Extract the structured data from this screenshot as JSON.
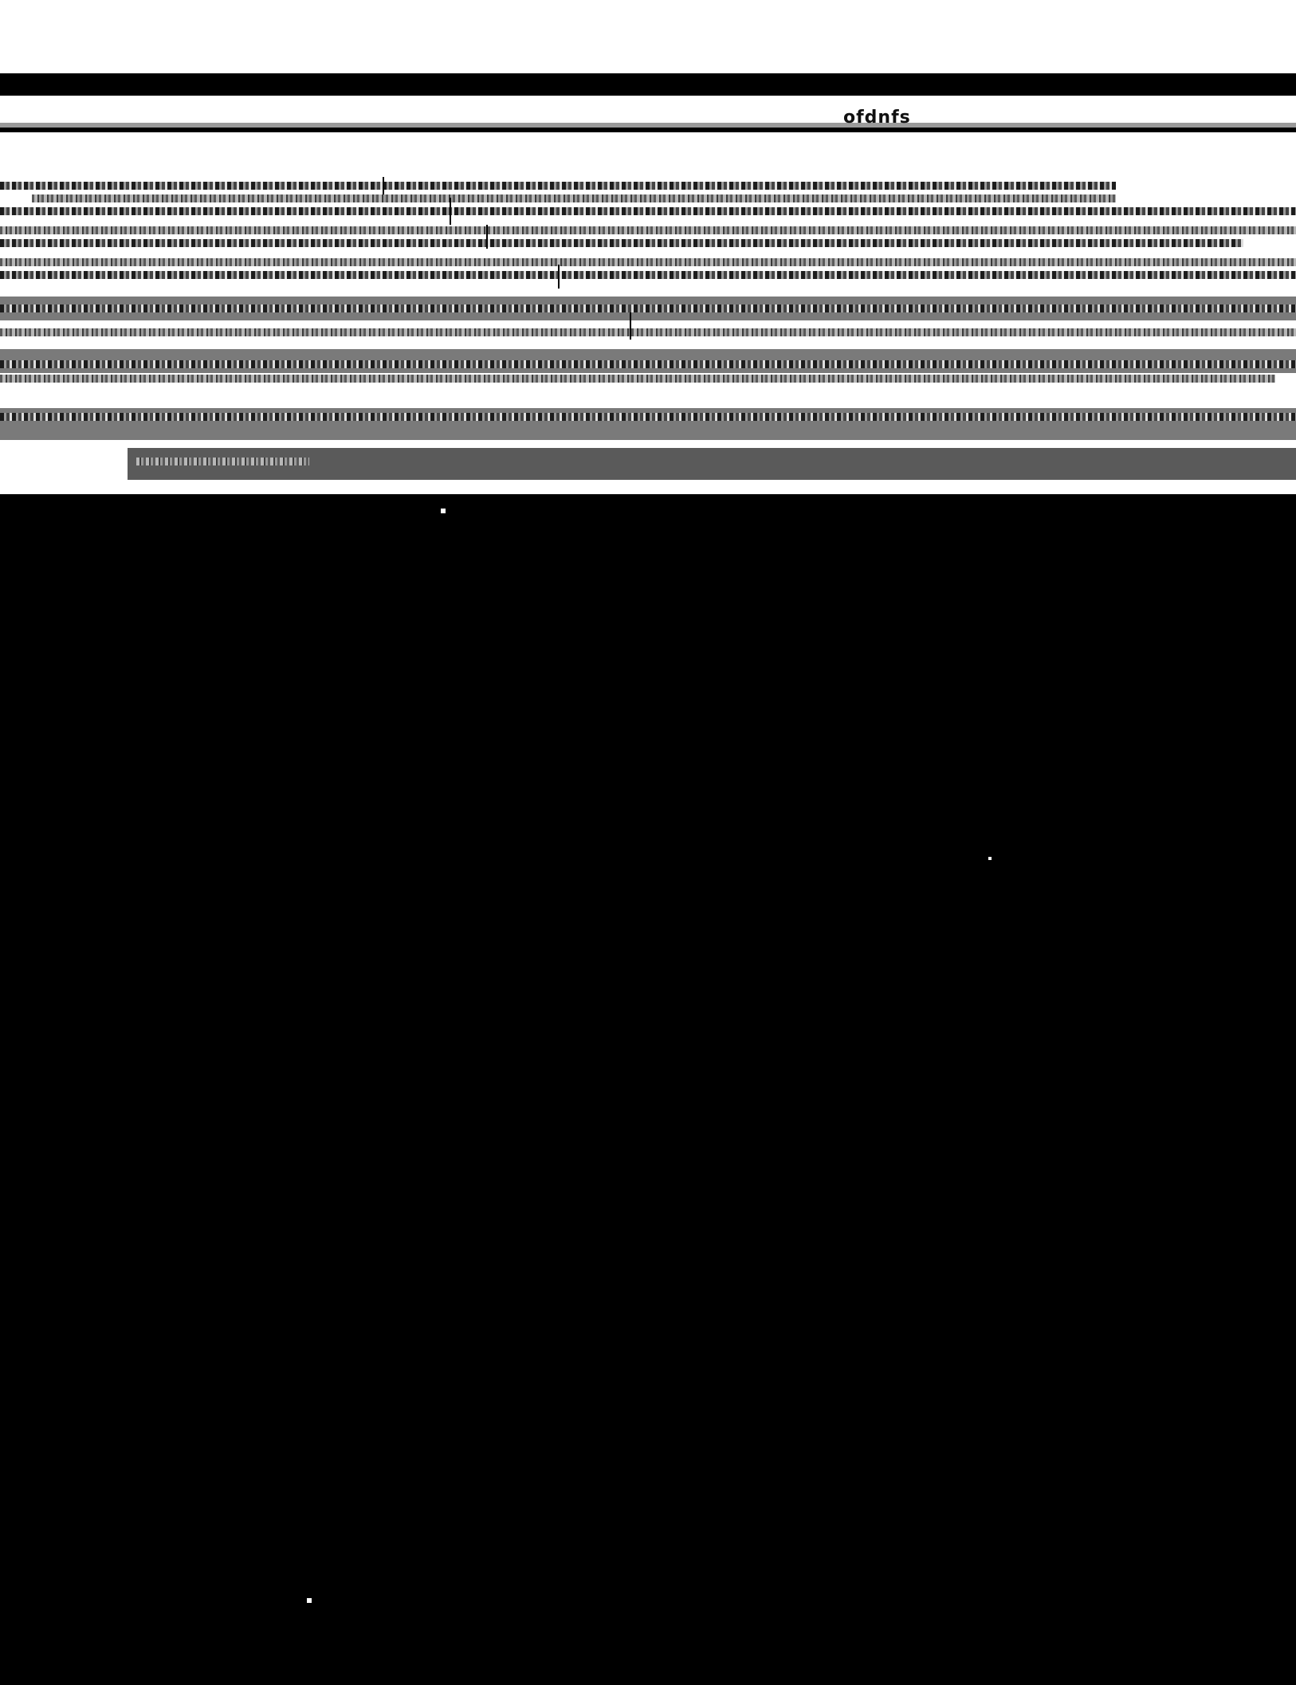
{
  "page": {
    "title": "ofdnfs"
  }
}
